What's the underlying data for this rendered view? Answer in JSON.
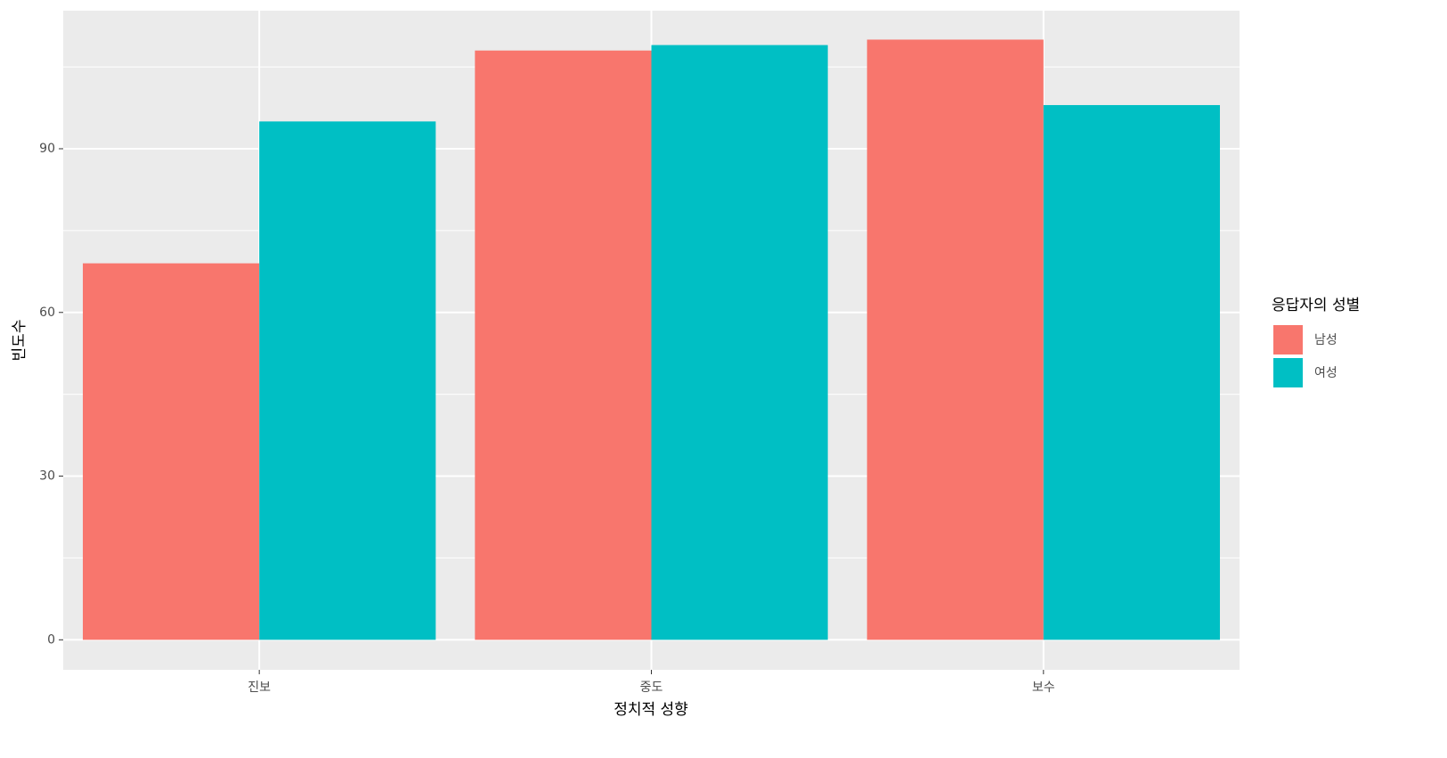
{
  "chart_data": {
    "type": "bar",
    "x_label": "정치적 성향",
    "y_label": "빈도수",
    "categories": [
      "진보",
      "중도",
      "보수"
    ],
    "series": [
      {
        "name": "남성",
        "color": "#F8766D",
        "values": [
          69,
          108,
          110
        ]
      },
      {
        "name": "여성",
        "color": "#00BFC4",
        "values": [
          95,
          109,
          98
        ]
      }
    ],
    "legend_title": "응답자의 성별",
    "legend_position": "right",
    "ylim": [
      -5.5,
      115.3
    ],
    "yticks": [
      0,
      30,
      60,
      90
    ],
    "grid": true
  }
}
